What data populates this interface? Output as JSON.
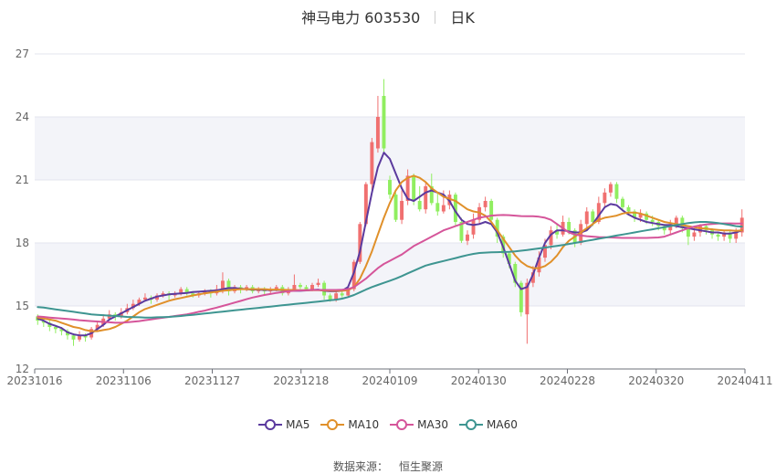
{
  "title": {
    "name": "神马电力 603530",
    "period": "日K"
  },
  "source": {
    "label": "数据来源：",
    "value": "恒生聚源"
  },
  "chart_data": {
    "type": "candlestick",
    "x_ticks": [
      "20231016",
      "20231106",
      "20231127",
      "20231218",
      "20240109",
      "20240130",
      "20240228",
      "20240320",
      "20240411"
    ],
    "y_ticks": [
      "12",
      "15",
      "18",
      "21",
      "24",
      "27"
    ],
    "ylim": [
      12,
      27
    ],
    "grid": true,
    "up_color": "#f07070",
    "down_color": "#90ee60",
    "legend_position": "bottom",
    "candles": [
      [
        14.5,
        14.3,
        14.6,
        14.1
      ],
      [
        14.3,
        14.2,
        14.4,
        14.0
      ],
      [
        14.2,
        14.0,
        14.3,
        13.8
      ],
      [
        14.0,
        13.9,
        14.1,
        13.7
      ],
      [
        13.9,
        13.8,
        14.0,
        13.6
      ],
      [
        13.8,
        13.6,
        13.9,
        13.4
      ],
      [
        13.6,
        13.4,
        13.7,
        13.1
      ],
      [
        13.4,
        13.6,
        13.8,
        13.3
      ],
      [
        13.6,
        13.5,
        13.7,
        13.3
      ],
      [
        13.5,
        13.9,
        14.0,
        13.4
      ],
      [
        13.9,
        14.1,
        14.3,
        13.8
      ],
      [
        14.1,
        14.4,
        14.6,
        14.0
      ],
      [
        14.4,
        14.6,
        14.8,
        14.3
      ],
      [
        14.6,
        14.5,
        14.7,
        14.3
      ],
      [
        14.5,
        14.7,
        14.9,
        14.4
      ],
      [
        14.7,
        14.9,
        15.1,
        14.6
      ],
      [
        14.9,
        15.1,
        15.3,
        14.8
      ],
      [
        15.1,
        15.3,
        15.4,
        15.0
      ],
      [
        15.3,
        15.4,
        15.6,
        15.2
      ],
      [
        15.4,
        15.3,
        15.5,
        15.1
      ],
      [
        15.3,
        15.5,
        15.6,
        15.2
      ],
      [
        15.5,
        15.6,
        15.7,
        15.4
      ],
      [
        15.6,
        15.5,
        15.7,
        15.3
      ],
      [
        15.5,
        15.6,
        15.7,
        15.4
      ],
      [
        15.6,
        15.8,
        15.9,
        15.5
      ],
      [
        15.8,
        15.6,
        15.9,
        15.5
      ],
      [
        15.6,
        15.5,
        15.7,
        15.4
      ],
      [
        15.5,
        15.6,
        15.7,
        15.4
      ],
      [
        15.6,
        15.7,
        15.8,
        15.5
      ],
      [
        15.7,
        15.6,
        15.8,
        15.4
      ],
      [
        15.6,
        15.8,
        16.0,
        15.5
      ],
      [
        15.8,
        16.2,
        16.6,
        15.6
      ],
      [
        16.2,
        15.7,
        16.3,
        15.5
      ],
      [
        15.7,
        15.9,
        16.0,
        15.6
      ],
      [
        15.9,
        15.8,
        16.0,
        15.6
      ],
      [
        15.8,
        15.9,
        16.0,
        15.7
      ],
      [
        15.9,
        15.7,
        16.0,
        15.6
      ],
      [
        15.7,
        15.8,
        15.9,
        15.6
      ],
      [
        15.8,
        15.7,
        15.9,
        15.5
      ],
      [
        15.7,
        15.8,
        15.9,
        15.6
      ],
      [
        15.8,
        15.9,
        16.0,
        15.7
      ],
      [
        15.9,
        15.6,
        16.0,
        15.5
      ],
      [
        15.6,
        15.8,
        15.9,
        15.5
      ],
      [
        15.8,
        16.0,
        16.5,
        15.7
      ],
      [
        16.0,
        15.9,
        16.1,
        15.8
      ],
      [
        15.9,
        15.8,
        16.0,
        15.7
      ],
      [
        15.8,
        16.0,
        16.1,
        15.7
      ],
      [
        16.0,
        16.1,
        16.3,
        15.9
      ],
      [
        16.1,
        15.5,
        16.2,
        15.3
      ],
      [
        15.5,
        15.3,
        15.6,
        15.2
      ],
      [
        15.3,
        15.6,
        15.8,
        15.2
      ],
      [
        15.6,
        15.5,
        15.8,
        15.4
      ],
      [
        15.5,
        15.8,
        15.9,
        15.4
      ],
      [
        15.8,
        17.1,
        17.2,
        15.7
      ],
      [
        17.1,
        18.9,
        19.0,
        17.0
      ],
      [
        18.9,
        20.8,
        20.9,
        18.8
      ],
      [
        20.8,
        22.8,
        23.0,
        20.5
      ],
      [
        22.5,
        24.0,
        25.0,
        22.3
      ],
      [
        25.0,
        22.5,
        25.8,
        22.3
      ],
      [
        21.0,
        20.3,
        21.2,
        20.1
      ],
      [
        20.3,
        19.1,
        20.4,
        19.0
      ],
      [
        19.1,
        20.0,
        20.5,
        18.9
      ],
      [
        20.0,
        21.2,
        21.5,
        19.8
      ],
      [
        21.2,
        20.0,
        21.3,
        19.8
      ],
      [
        20.0,
        19.6,
        20.7,
        19.5
      ],
      [
        19.6,
        20.7,
        20.9,
        19.4
      ],
      [
        20.7,
        19.9,
        21.3,
        19.8
      ],
      [
        19.9,
        19.5,
        20.4,
        19.3
      ],
      [
        19.5,
        19.8,
        20.5,
        19.4
      ],
      [
        19.8,
        20.3,
        20.5,
        19.6
      ],
      [
        20.3,
        19.0,
        20.4,
        18.8
      ],
      [
        19.0,
        18.1,
        19.2,
        18.0
      ],
      [
        18.1,
        18.4,
        18.6,
        17.9
      ],
      [
        18.4,
        19.1,
        19.4,
        18.2
      ],
      [
        19.1,
        19.7,
        19.9,
        18.9
      ],
      [
        19.7,
        20.0,
        20.2,
        19.5
      ],
      [
        20.0,
        19.1,
        20.1,
        18.9
      ],
      [
        19.1,
        18.3,
        19.2,
        18.0
      ],
      [
        18.3,
        17.5,
        18.4,
        17.3
      ],
      [
        17.5,
        17.0,
        17.6,
        16.8
      ],
      [
        17.0,
        16.1,
        17.1,
        15.9
      ],
      [
        16.1,
        14.7,
        16.2,
        14.5
      ],
      [
        14.6,
        16.1,
        16.3,
        13.2
      ],
      [
        16.1,
        16.6,
        16.9,
        15.9
      ],
      [
        16.6,
        17.3,
        17.6,
        16.4
      ],
      [
        17.3,
        17.9,
        18.2,
        17.1
      ],
      [
        17.9,
        18.6,
        18.8,
        17.7
      ],
      [
        18.6,
        18.4,
        18.9,
        18.2
      ],
      [
        18.4,
        19.0,
        19.3,
        18.3
      ],
      [
        19.0,
        18.6,
        19.2,
        18.4
      ],
      [
        18.6,
        18.0,
        18.7,
        17.8
      ],
      [
        18.0,
        18.9,
        19.1,
        17.9
      ],
      [
        18.9,
        19.5,
        19.7,
        18.7
      ],
      [
        19.5,
        19.0,
        19.6,
        18.8
      ],
      [
        19.0,
        19.9,
        20.2,
        18.9
      ],
      [
        19.9,
        20.4,
        20.6,
        19.7
      ],
      [
        20.4,
        20.8,
        20.9,
        20.2
      ],
      [
        20.8,
        20.1,
        20.9,
        19.9
      ],
      [
        20.1,
        19.7,
        20.2,
        19.5
      ],
      [
        19.7,
        19.5,
        19.8,
        19.3
      ],
      [
        19.5,
        19.2,
        19.6,
        19.0
      ],
      [
        19.2,
        19.4,
        19.6,
        19.0
      ],
      [
        19.4,
        19.1,
        19.5,
        18.9
      ],
      [
        19.1,
        19.0,
        19.3,
        18.8
      ],
      [
        19.0,
        18.8,
        19.1,
        18.6
      ],
      [
        18.8,
        18.6,
        18.9,
        18.4
      ],
      [
        18.6,
        18.9,
        19.1,
        18.4
      ],
      [
        18.9,
        19.2,
        19.3,
        18.7
      ],
      [
        19.2,
        18.7,
        19.3,
        18.5
      ],
      [
        18.7,
        18.3,
        18.8,
        17.9
      ],
      [
        18.3,
        18.5,
        18.7,
        18.1
      ],
      [
        18.5,
        18.8,
        18.9,
        18.3
      ],
      [
        18.8,
        18.6,
        18.9,
        18.4
      ],
      [
        18.6,
        18.4,
        18.7,
        18.2
      ],
      [
        18.4,
        18.3,
        18.5,
        18.1
      ],
      [
        18.3,
        18.5,
        18.6,
        18.1
      ],
      [
        18.5,
        18.2,
        18.6,
        18.0
      ],
      [
        18.2,
        18.5,
        18.7,
        18.0
      ],
      [
        18.5,
        19.2,
        19.6,
        18.3
      ]
    ],
    "series": [
      {
        "name": "MA5",
        "color": "#5b3a9e",
        "values": [
          14.4,
          14.3,
          14.15,
          14.05,
          13.95,
          13.75,
          13.65,
          13.6,
          13.6,
          13.7,
          13.9,
          14.1,
          14.35,
          14.5,
          14.65,
          14.8,
          14.95,
          15.1,
          15.25,
          15.35,
          15.45,
          15.5,
          15.55,
          15.58,
          15.6,
          15.62,
          15.66,
          15.68,
          15.7,
          15.72,
          15.74,
          15.8,
          15.85,
          15.85,
          15.82,
          15.8,
          15.78,
          15.78,
          15.76,
          15.76,
          15.76,
          15.76,
          15.74,
          15.72,
          15.72,
          15.74,
          15.76,
          15.78,
          15.72,
          15.7,
          15.7,
          15.72,
          15.9,
          16.6,
          17.6,
          19.0,
          20.4,
          21.6,
          22.3,
          22.0,
          21.3,
          20.6,
          20.1,
          20.0,
          20.2,
          20.4,
          20.5,
          20.4,
          20.3,
          20.0,
          19.5,
          19.1,
          18.9,
          18.85,
          18.9,
          19.0,
          18.9,
          18.5,
          17.8,
          17.0,
          16.2,
          15.8,
          15.9,
          16.5,
          17.3,
          18.0,
          18.4,
          18.6,
          18.6,
          18.55,
          18.5,
          18.5,
          18.6,
          18.9,
          19.3,
          19.7,
          19.85,
          19.8,
          19.55,
          19.35,
          19.2,
          19.1,
          19.0,
          18.95,
          18.9,
          18.85,
          18.85,
          18.8,
          18.75,
          18.7,
          18.65,
          18.6,
          18.55,
          18.5,
          18.5,
          18.45,
          18.45,
          18.5,
          18.6
        ]
      },
      {
        "name": "MA10",
        "color": "#e0902a",
        "values": [
          14.45,
          14.4,
          14.35,
          14.3,
          14.2,
          14.1,
          14.0,
          13.95,
          13.85,
          13.8,
          13.8,
          13.85,
          13.9,
          14.0,
          14.15,
          14.3,
          14.5,
          14.7,
          14.85,
          14.95,
          15.05,
          15.15,
          15.25,
          15.32,
          15.38,
          15.44,
          15.5,
          15.55,
          15.6,
          15.64,
          15.68,
          15.72,
          15.75,
          15.78,
          15.8,
          15.8,
          15.8,
          15.8,
          15.8,
          15.78,
          15.78,
          15.77,
          15.76,
          15.76,
          15.75,
          15.75,
          15.75,
          15.75,
          15.74,
          15.73,
          15.72,
          15.72,
          15.75,
          15.9,
          16.3,
          16.9,
          17.6,
          18.4,
          19.2,
          19.9,
          20.5,
          20.9,
          21.1,
          21.2,
          21.1,
          20.9,
          20.6,
          20.4,
          20.2,
          20.1,
          20.0,
          19.8,
          19.6,
          19.5,
          19.45,
          19.3,
          19.0,
          18.6,
          18.2,
          17.8,
          17.4,
          17.1,
          16.9,
          16.8,
          16.8,
          16.9,
          17.1,
          17.4,
          17.8,
          18.1,
          18.3,
          18.5,
          18.7,
          18.9,
          19.1,
          19.2,
          19.25,
          19.3,
          19.4,
          19.45,
          19.45,
          19.4,
          19.3,
          19.2,
          19.1,
          19.0,
          18.95,
          18.9,
          18.85,
          18.8,
          18.75,
          18.7,
          18.68,
          18.65,
          18.62,
          18.6,
          18.6,
          18.58,
          18.6
        ]
      },
      {
        "name": "MA30",
        "color": "#d5559a",
        "values": [
          14.5,
          14.48,
          14.45,
          14.42,
          14.4,
          14.38,
          14.35,
          14.32,
          14.3,
          14.28,
          14.26,
          14.24,
          14.22,
          14.2,
          14.2,
          14.22,
          14.25,
          14.28,
          14.32,
          14.36,
          14.4,
          14.44,
          14.48,
          14.52,
          14.56,
          14.6,
          14.66,
          14.72,
          14.78,
          14.85,
          14.92,
          15.0,
          15.08,
          15.16,
          15.24,
          15.32,
          15.4,
          15.46,
          15.52,
          15.57,
          15.62,
          15.66,
          15.7,
          15.72,
          15.74,
          15.75,
          15.76,
          15.76,
          15.76,
          15.76,
          15.76,
          15.77,
          15.8,
          15.9,
          16.1,
          16.3,
          16.55,
          16.8,
          17.0,
          17.15,
          17.3,
          17.45,
          17.65,
          17.85,
          18.0,
          18.15,
          18.3,
          18.45,
          18.6,
          18.7,
          18.8,
          18.9,
          19.0,
          19.1,
          19.2,
          19.25,
          19.3,
          19.32,
          19.33,
          19.32,
          19.3,
          19.28,
          19.27,
          19.27,
          19.25,
          19.2,
          19.1,
          18.9,
          18.7,
          18.5,
          18.4,
          18.35,
          18.32,
          18.3,
          18.28,
          18.27,
          18.26,
          18.25,
          18.24,
          18.24,
          18.24,
          18.24,
          18.24,
          18.25,
          18.26,
          18.3,
          18.4,
          18.5,
          18.6,
          18.7,
          18.78,
          18.84,
          18.88,
          18.9,
          18.92,
          18.93,
          18.93,
          18.92,
          18.92
        ]
      },
      {
        "name": "MA60",
        "color": "#3e9591",
        "values": [
          14.95,
          14.92,
          14.88,
          14.84,
          14.8,
          14.76,
          14.72,
          14.68,
          14.64,
          14.6,
          14.58,
          14.56,
          14.54,
          14.52,
          14.5,
          14.48,
          14.47,
          14.46,
          14.45,
          14.45,
          14.46,
          14.47,
          14.48,
          14.5,
          14.52,
          14.55,
          14.58,
          14.61,
          14.64,
          14.67,
          14.7,
          14.73,
          14.76,
          14.79,
          14.82,
          14.85,
          14.88,
          14.91,
          14.94,
          14.97,
          15.0,
          15.03,
          15.06,
          15.09,
          15.12,
          15.15,
          15.18,
          15.21,
          15.24,
          15.27,
          15.3,
          15.35,
          15.42,
          15.52,
          15.65,
          15.78,
          15.9,
          16.0,
          16.1,
          16.2,
          16.3,
          16.42,
          16.55,
          16.68,
          16.8,
          16.92,
          17.0,
          17.07,
          17.14,
          17.21,
          17.28,
          17.35,
          17.42,
          17.48,
          17.52,
          17.54,
          17.55,
          17.56,
          17.57,
          17.58,
          17.6,
          17.63,
          17.66,
          17.7,
          17.74,
          17.78,
          17.82,
          17.86,
          17.9,
          17.95,
          18.0,
          18.05,
          18.1,
          18.15,
          18.2,
          18.25,
          18.3,
          18.35,
          18.4,
          18.45,
          18.5,
          18.55,
          18.6,
          18.65,
          18.7,
          18.75,
          18.8,
          18.85,
          18.9,
          18.95,
          18.98,
          19.0,
          19.0,
          18.98,
          18.95,
          18.9,
          18.85,
          18.8,
          18.78
        ]
      }
    ]
  }
}
